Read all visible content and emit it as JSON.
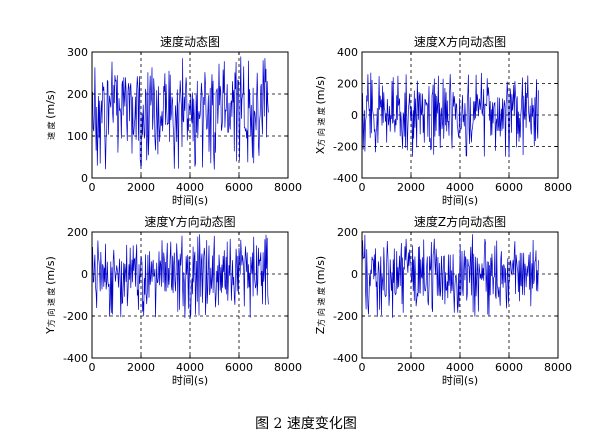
{
  "figure_caption": "图 2  速度变化图",
  "chart_data": [
    {
      "type": "line",
      "title": "速度动态图",
      "xlabel": "时间(s)",
      "ylabel_small": "速  度",
      "ylabel_unit": "(m/s)",
      "xlim": [
        0,
        8000
      ],
      "ylim": [
        0,
        300
      ],
      "xticks": [
        0,
        2000,
        4000,
        6000,
        8000
      ],
      "yticks": [
        0,
        100,
        200,
        300
      ],
      "grid": true,
      "series_color": "#0000cc",
      "x_range": [
        0,
        7200
      ],
      "amplitude_band": [
        20,
        290
      ],
      "center": 160
    },
    {
      "type": "line",
      "title": "速度X方向动态图",
      "xlabel": "时间(s)",
      "ylabel_big": "X",
      "ylabel_small": "方  向  速  度",
      "ylabel_unit": "(m/s)",
      "xlim": [
        0,
        8000
      ],
      "ylim": [
        -400,
        400
      ],
      "xticks": [
        0,
        2000,
        4000,
        6000,
        8000
      ],
      "yticks": [
        -400,
        -200,
        0,
        200,
        400
      ],
      "grid": true,
      "series_color": "#0000cc",
      "x_range": [
        0,
        7200
      ],
      "amplitude_band": [
        -270,
        270
      ],
      "center": 0
    },
    {
      "type": "line",
      "title": "速度Y方向动态图",
      "xlabel": "时间(s)",
      "ylabel_big": "Y",
      "ylabel_small": "方  向  速  度",
      "ylabel_unit": "(m/s)",
      "xlim": [
        0,
        8000
      ],
      "ylim": [
        -400,
        200
      ],
      "xticks": [
        0,
        2000,
        4000,
        6000,
        8000
      ],
      "yticks": [
        -400,
        -200,
        0,
        200
      ],
      "grid": true,
      "series_color": "#0000cc",
      "x_range": [
        0,
        7200
      ],
      "amplitude_band": [
        -210,
        190
      ],
      "center": 0
    },
    {
      "type": "line",
      "title": "速度Z方向动态图",
      "xlabel": "时间(s)",
      "ylabel_big": "Z",
      "ylabel_small": "方  向  速  度",
      "ylabel_unit": "(m/s)",
      "xlim": [
        0,
        8000
      ],
      "ylim": [
        -400,
        200
      ],
      "xticks": [
        0,
        2000,
        4000,
        6000,
        8000
      ],
      "yticks": [
        -400,
        -200,
        0,
        200
      ],
      "grid": true,
      "series_color": "#0000cc",
      "x_range": [
        0,
        7200
      ],
      "amplitude_band": [
        -210,
        190
      ],
      "center": 0
    }
  ]
}
